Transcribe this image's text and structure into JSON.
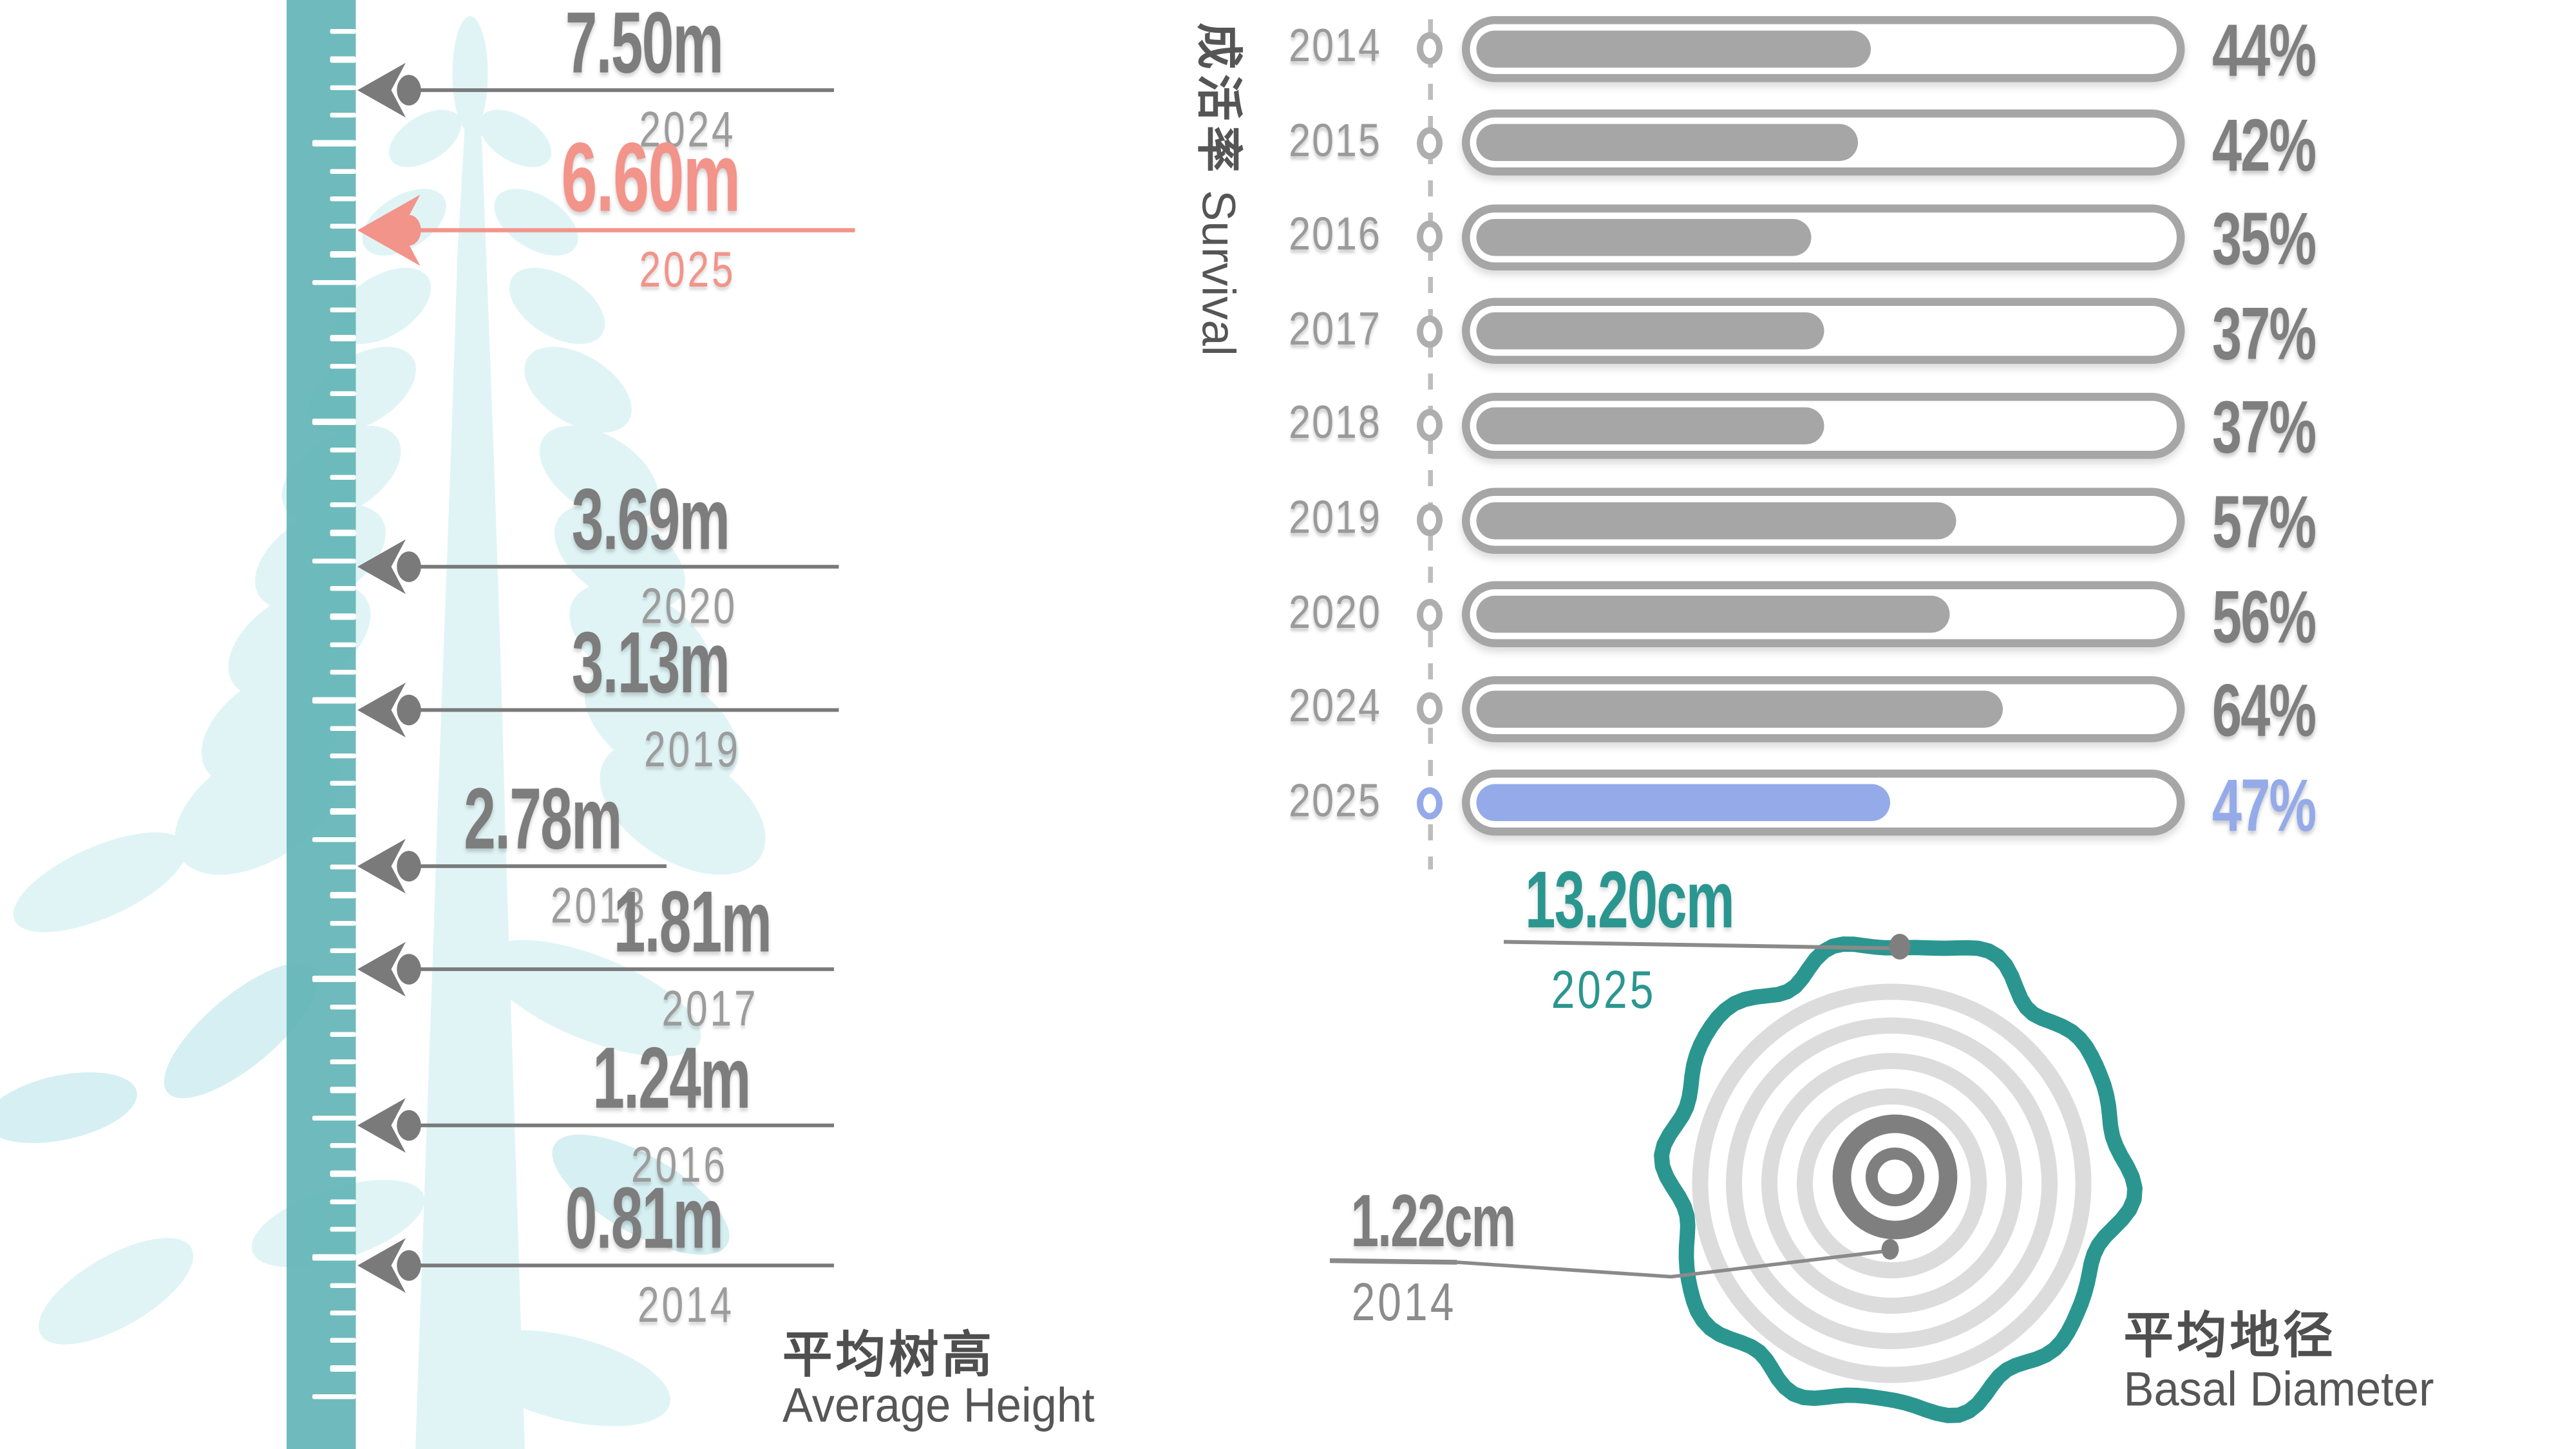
{
  "palette": {
    "ruler_teal": "#64b5b7",
    "tree_tint": "#e0f4f6",
    "accent_salmon": "#f2948a",
    "accent_blue": "#94aae9",
    "accent_teal": "#2b9690",
    "bar_gray": "#a6a6a6",
    "text_dark": "#4f4f4f",
    "text_gray": "#7d7d7d"
  },
  "height_section": {
    "title_zh": "平均树高",
    "title_en": "Average Height"
  },
  "survival_section": {
    "label_zh": "成活率",
    "label_en": "Survival"
  },
  "diameter_section": {
    "title_zh": "平均地径",
    "title_en": "Basal Diameter",
    "outer": {
      "value": "13.20cm",
      "year": "2025"
    },
    "inner": {
      "value": "1.22cm",
      "year": "2014"
    }
  },
  "chart_data": [
    {
      "type": "bar",
      "name": "average-height-ruler",
      "title": "平均树高 Average Height",
      "orientation": "vertical-ruler-timeline",
      "unit": "m",
      "categories": [
        "2024",
        "2025",
        "2020",
        "2019",
        "2018",
        "2017",
        "2016",
        "2014"
      ],
      "values": [
        7.5,
        6.6,
        3.69,
        3.13,
        2.78,
        1.81,
        1.24,
        0.81
      ],
      "value_labels": [
        "7.50m",
        "6.60m",
        "3.69m",
        "3.13m",
        "2.78m",
        "1.81m",
        "1.24m",
        "0.81m"
      ],
      "highlight_category": "2025",
      "highlight_color": "#f2948a"
    },
    {
      "type": "bar",
      "name": "survival-rate",
      "title": "成活率 Survival",
      "orientation": "horizontal",
      "unit": "%",
      "xlim": [
        0,
        100
      ],
      "categories": [
        "2014",
        "2015",
        "2016",
        "2017",
        "2018",
        "2019",
        "2020",
        "2024",
        "2025"
      ],
      "values": [
        44,
        42,
        35,
        37,
        37,
        57,
        56,
        64,
        47
      ],
      "value_labels": [
        "44%",
        "42%",
        "35%",
        "37%",
        "37%",
        "57%",
        "56%",
        "64%",
        "47%"
      ],
      "highlight_category": "2025",
      "highlight_color": "#94aae9",
      "legend": false,
      "grid": false
    },
    {
      "type": "rings",
      "name": "basal-diameter",
      "title": "平均地径 Basal Diameter",
      "unit": "cm",
      "annotations": [
        {
          "label": "13.20cm",
          "value": 13.2,
          "year": "2025",
          "position": "outer-ring"
        },
        {
          "label": "1.22cm",
          "value": 1.22,
          "year": "2014",
          "position": "center"
        }
      ]
    }
  ]
}
